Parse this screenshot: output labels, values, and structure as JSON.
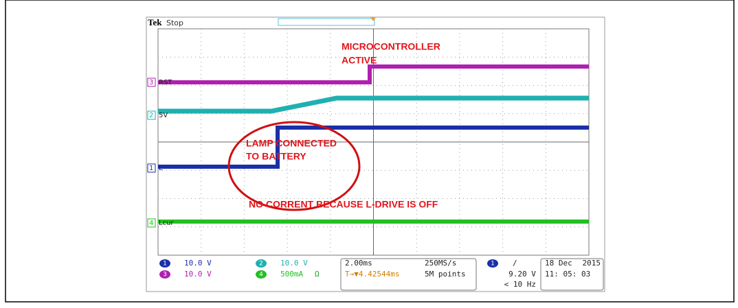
{
  "header": {
    "brand": "Tek",
    "status": "Stop"
  },
  "annotations": [
    "MICROCONTROLLER",
    "ACTIVE",
    "LAMP CONNECTED",
    "TO BATTERY",
    "NO CORRENT BECAUSE L-DRIVE IS OFF"
  ],
  "channels": [
    {
      "number": "1",
      "label": "L",
      "scale": "10.0 V"
    },
    {
      "number": "2",
      "label": "5V",
      "scale": "10.0 V"
    },
    {
      "number": "3",
      "label": "RST",
      "scale": "10.0 V"
    },
    {
      "number": "4",
      "label": "Lcur",
      "scale": "500mA",
      "unit": "Ω"
    }
  ],
  "status_bar": {
    "timebase": "2.00ms",
    "sample_rate": "250MS/s",
    "trigger_position": "T→▼4.42544ms",
    "record_length": "5M points",
    "trigger_channel": "1",
    "trigger_slope": "/",
    "trigger_level": "9.20 V",
    "trigger_freq": "< 10 Hz",
    "date": "18 Dec",
    "year": "2015",
    "time": "11: 05: 03"
  }
}
